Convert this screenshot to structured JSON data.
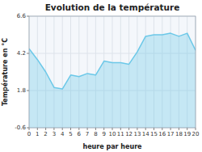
{
  "chart_data": {
    "type": "area",
    "title": "Evolution de la température",
    "x_label": "heure par heure",
    "y_label": "Température en °C",
    "x": [
      0,
      1,
      2,
      3,
      4,
      5,
      6,
      7,
      8,
      9,
      10,
      11,
      12,
      13,
      14,
      15,
      16,
      17,
      18,
      19,
      20
    ],
    "values": [
      4.5,
      3.8,
      3.0,
      2.0,
      1.9,
      2.8,
      2.7,
      2.9,
      2.8,
      3.7,
      3.6,
      3.6,
      3.5,
      4.3,
      5.3,
      5.4,
      5.4,
      5.5,
      5.3,
      5.5,
      4.4
    ],
    "color": "#6cc8e8",
    "xlim": [
      0,
      20
    ],
    "ylim": [
      -0.6,
      6.6
    ],
    "xticks": [
      0,
      1,
      2,
      3,
      4,
      5,
      6,
      7,
      8,
      9,
      10,
      11,
      12,
      13,
      14,
      15,
      16,
      17,
      18,
      19,
      20
    ],
    "yticks": [
      -0.6,
      1.8,
      4.2,
      6.6
    ],
    "grid": true
  }
}
